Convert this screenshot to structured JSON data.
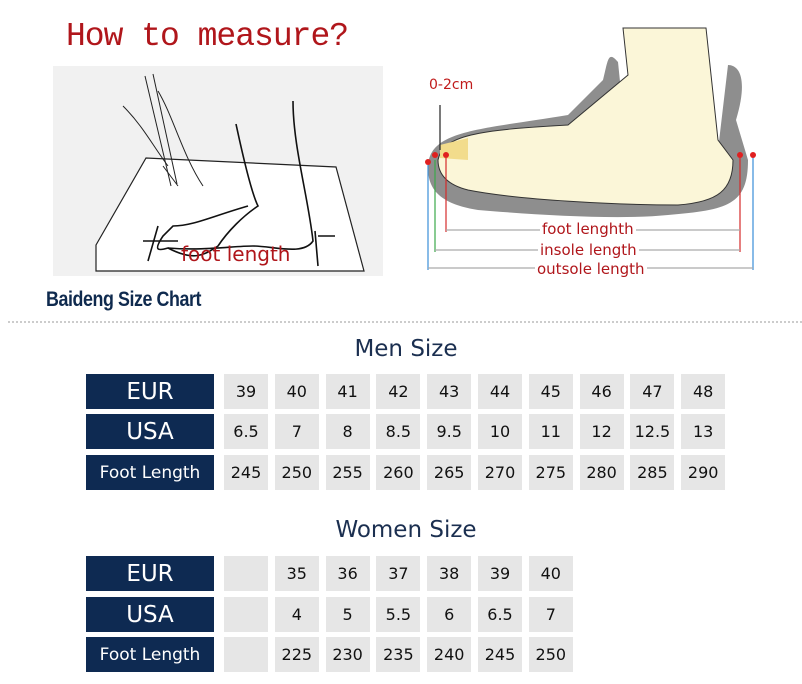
{
  "heading": "How to measure?",
  "left_illustration": {
    "label": "foot length"
  },
  "right_illustration": {
    "gap_label": "0-2cm",
    "labels": [
      "foot lenghth",
      "insole length",
      "outsole length"
    ]
  },
  "brand_title": "Baideng Size Chart",
  "men": {
    "title": "Men Size",
    "rows": [
      {
        "label": "EUR",
        "values": [
          "39",
          "40",
          "41",
          "42",
          "43",
          "44",
          "45",
          "46",
          "47",
          "48"
        ]
      },
      {
        "label": "USA",
        "values": [
          "6.5",
          "7",
          "8",
          "8.5",
          "9.5",
          "10",
          "11",
          "12",
          "12.5",
          "13"
        ]
      },
      {
        "label": "Foot Length",
        "values": [
          "245",
          "250",
          "255",
          "260",
          "265",
          "270",
          "275",
          "280",
          "285",
          "290"
        ]
      }
    ]
  },
  "women": {
    "title": "Women Size",
    "rows": [
      {
        "label": "EUR",
        "values": [
          "",
          "35",
          "36",
          "37",
          "38",
          "39",
          "40"
        ]
      },
      {
        "label": "USA",
        "values": [
          "",
          "4",
          "5",
          "5.5",
          "6",
          "6.5",
          "7"
        ]
      },
      {
        "label": "Foot Length",
        "values": [
          "",
          "225",
          "230",
          "235",
          "240",
          "245",
          "250"
        ]
      }
    ]
  },
  "colors": {
    "header_bg": "#0e2a52",
    "cell_bg": "#e6e6e6",
    "accent_red": "#b0161b"
  }
}
